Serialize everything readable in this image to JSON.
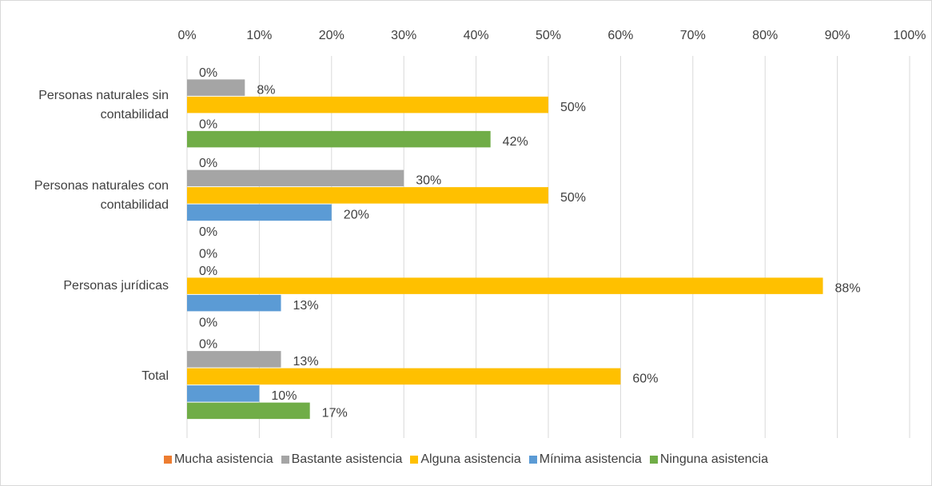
{
  "chart_data": {
    "type": "bar",
    "orientation": "horizontal",
    "categories": [
      "Personas naturales sin contabilidad",
      "Personas naturales con contabilidad",
      "Personas jurídicas",
      "Total"
    ],
    "series": [
      {
        "name": "Mucha asistencia",
        "color": "#ed7d31",
        "values": [
          0,
          0,
          0,
          0
        ],
        "value_labels": [
          "0%",
          "0%",
          "0%",
          "0%"
        ]
      },
      {
        "name": "Bastante asistencia",
        "color": "#a5a5a5",
        "values": [
          8,
          30,
          0,
          13
        ],
        "value_labels": [
          "8%",
          "30%",
          "0%",
          "13%"
        ]
      },
      {
        "name": "Alguna asistencia",
        "color": "#ffc000",
        "values": [
          50,
          50,
          88,
          60
        ],
        "value_labels": [
          "50%",
          "50%",
          "88%",
          "60%"
        ]
      },
      {
        "name": "Mínima asistencia",
        "color": "#5b9bd5",
        "values": [
          0,
          20,
          13,
          10
        ],
        "value_labels": [
          "0%",
          "20%",
          "13%",
          "10%"
        ]
      },
      {
        "name": "Ninguna asistencia",
        "color": "#70ad47",
        "values": [
          42,
          0,
          0,
          17
        ],
        "value_labels": [
          "42%",
          "0%",
          "0%",
          "17%"
        ]
      }
    ],
    "xlim": [
      0,
      100
    ],
    "xticks": [
      {
        "value": 0,
        "label": "0%"
      },
      {
        "value": 10,
        "label": "10%"
      },
      {
        "value": 20,
        "label": "20%"
      },
      {
        "value": 30,
        "label": "30%"
      },
      {
        "value": 40,
        "label": "40%"
      },
      {
        "value": 50,
        "label": "50%"
      },
      {
        "value": 60,
        "label": "60%"
      },
      {
        "value": 70,
        "label": "70%"
      },
      {
        "value": 80,
        "label": "80%"
      },
      {
        "value": 90,
        "label": "90%"
      },
      {
        "value": 100,
        "label": "100%"
      }
    ],
    "grid": true,
    "legend": "bottom"
  }
}
